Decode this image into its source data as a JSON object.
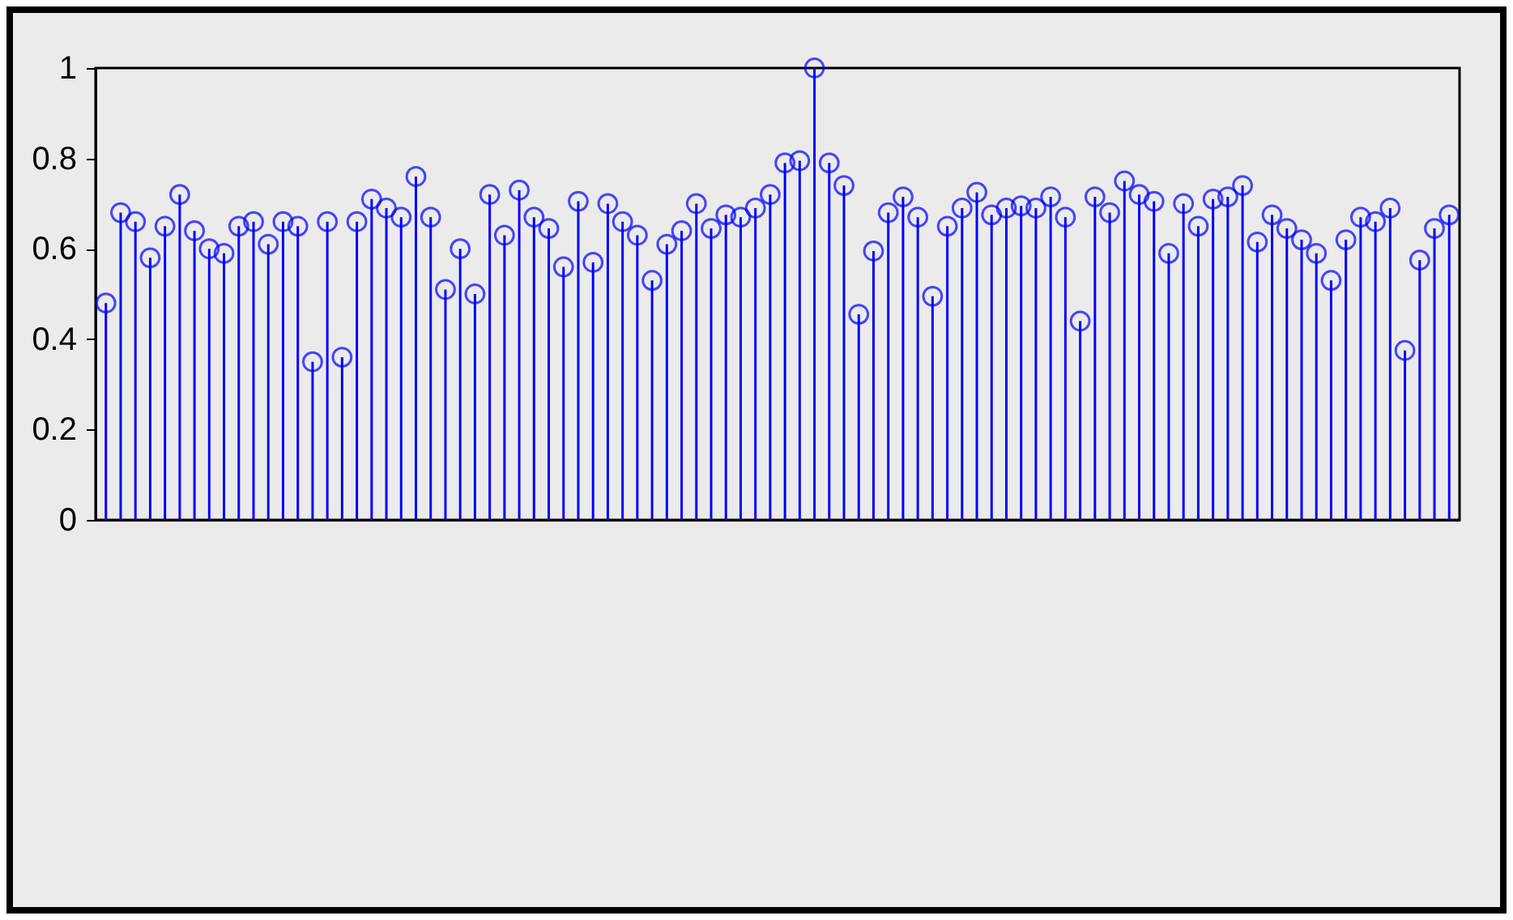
{
  "chart_data": {
    "type": "lollipop",
    "marker": "circle",
    "grid": false,
    "color": "#0000ff",
    "ylim": [
      0,
      1
    ],
    "yticks": [
      0,
      0.2,
      0.4,
      0.6,
      0.8,
      1
    ],
    "categories": [
      null,
      null,
      null,
      null,
      null,
      null,
      null,
      null,
      null,
      null,
      null,
      null,
      null,
      null,
      null,
      null,
      null,
      null,
      null,
      null,
      null,
      null,
      null,
      null,
      null,
      null,
      null,
      null,
      null,
      null,
      null,
      null,
      null,
      null,
      null,
      null,
      null,
      null,
      null,
      null,
      null,
      null,
      null,
      null,
      null,
      null,
      null,
      null,
      null,
      null,
      null,
      null,
      null,
      null,
      null,
      null,
      null,
      null,
      null,
      null,
      null,
      null,
      null,
      null,
      null,
      null,
      null,
      null,
      null,
      null,
      null,
      null,
      null,
      null,
      null,
      null,
      null,
      null,
      null,
      null,
      null,
      null,
      null,
      null,
      null,
      null,
      null,
      null,
      null,
      null,
      null,
      null
    ],
    "values": [
      0.48,
      0.68,
      0.66,
      0.58,
      0.65,
      0.72,
      0.64,
      0.6,
      0.59,
      0.65,
      0.66,
      0.61,
      0.66,
      0.65,
      0.35,
      0.66,
      0.36,
      0.66,
      0.71,
      0.69,
      0.67,
      0.76,
      0.67,
      0.51,
      0.6,
      0.5,
      0.72,
      0.63,
      0.73,
      0.67,
      0.645,
      0.56,
      0.705,
      0.57,
      0.7,
      0.66,
      0.63,
      0.53,
      0.61,
      0.64,
      0.7,
      0.645,
      0.675,
      0.67,
      0.69,
      0.72,
      0.79,
      0.795,
      1,
      0.79,
      0.74,
      0.455,
      0.595,
      0.68,
      0.715,
      0.67,
      0.495,
      0.65,
      0.69,
      0.725,
      0.675,
      0.69,
      0.695,
      0.69,
      0.715,
      0.67,
      0.44,
      0.715,
      0.68,
      0.75,
      0.72,
      0.705,
      0.59,
      0.7,
      0.65,
      0.71,
      0.715,
      0.74,
      0.615,
      0.675,
      0.645,
      0.62,
      0.59,
      0.53,
      0.62,
      0.67,
      0.66,
      0.69,
      0.375,
      0.575,
      0.645,
      0.675
    ]
  }
}
